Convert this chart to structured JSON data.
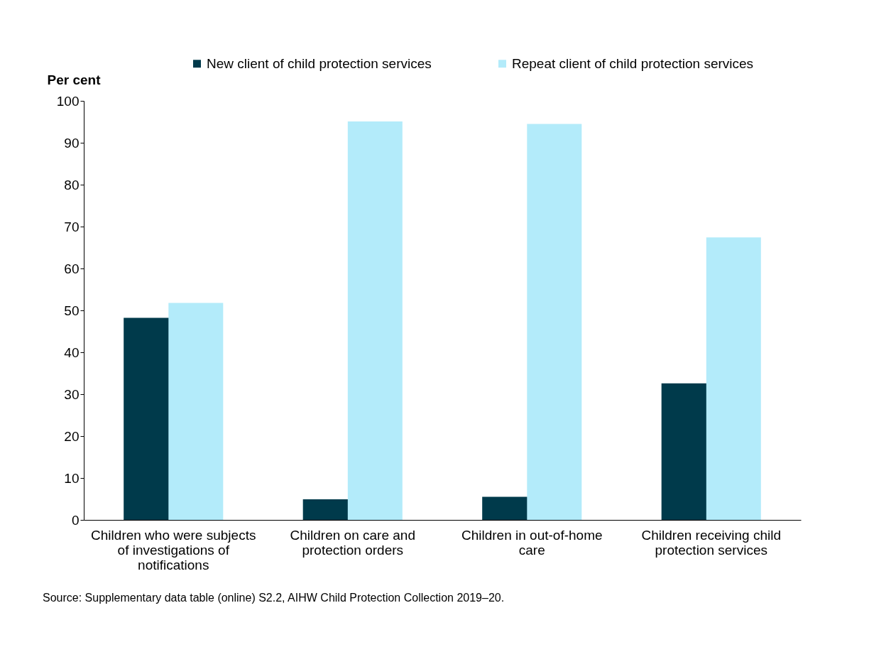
{
  "chart_data": {
    "type": "bar",
    "ylabel": "Per cent",
    "categories": [
      "Children who were subjects of investigations of notifications",
      "Children on care and protection orders",
      "Children in out-of-home care",
      "Children receiving child protection services"
    ],
    "series": [
      {
        "name": "New client of child protection services",
        "color": "#003a4b",
        "values": [
          48.2,
          4.9,
          5.5,
          32.6
        ]
      },
      {
        "name": "Repeat client of child protection services",
        "color": "#b3ebfa",
        "values": [
          51.8,
          95.1,
          94.5,
          67.4
        ]
      }
    ],
    "ylim": [
      0,
      100
    ],
    "yticks": [
      0,
      10,
      20,
      30,
      40,
      50,
      60,
      70,
      80,
      90,
      100
    ],
    "grid": false,
    "legend": "top",
    "annotations": [
      "Source: Supplementary data table (online) S2.2, AIHW Child Protection Collection 2019–20."
    ]
  }
}
